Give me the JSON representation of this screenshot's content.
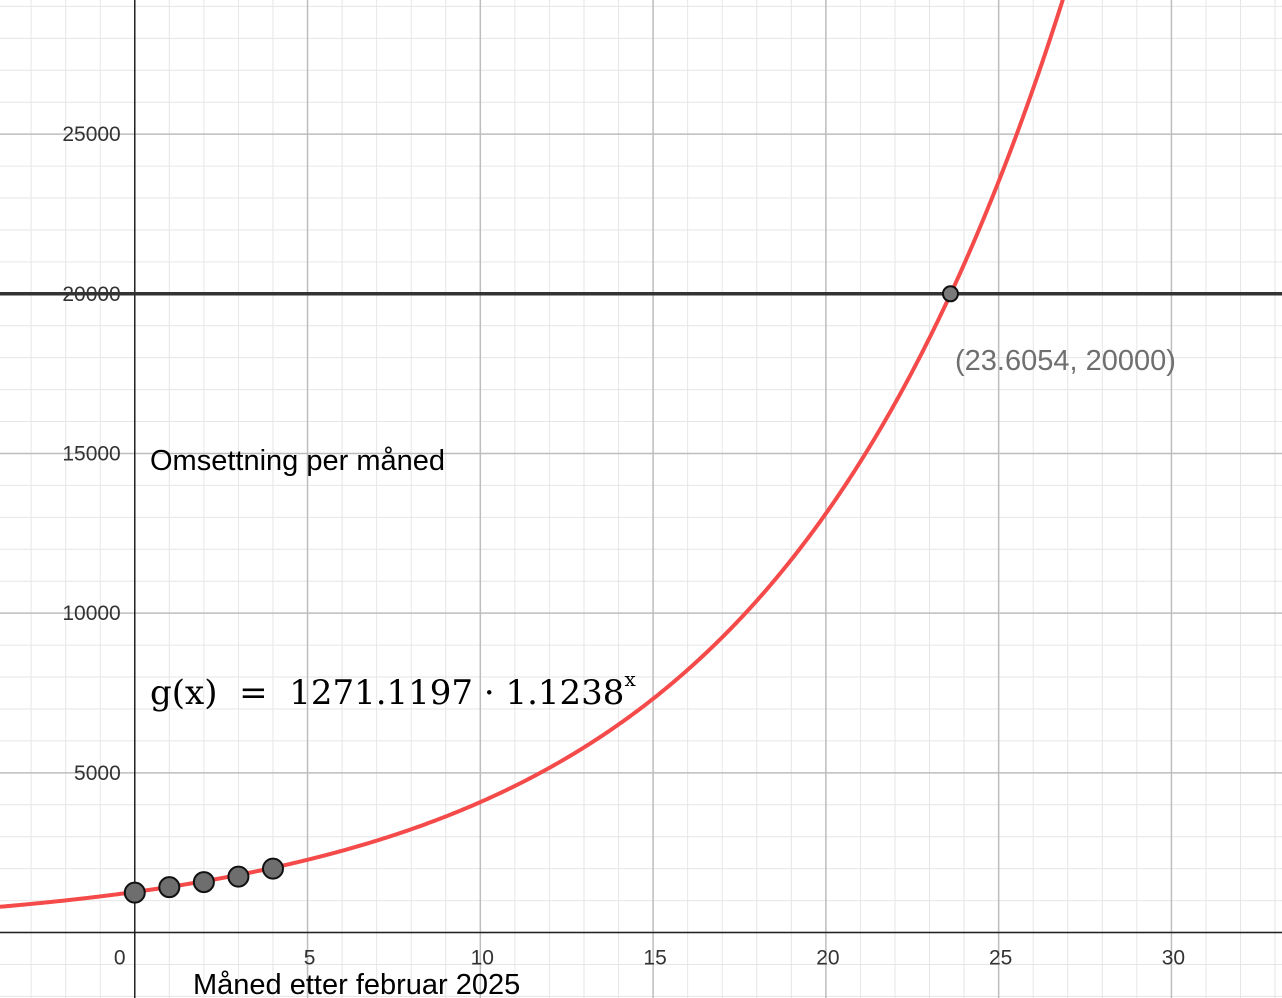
{
  "chart_data": {
    "type": "line",
    "xlim": [
      -3.9,
      33.2
    ],
    "ylim": [
      -2050,
      29200
    ],
    "grid": true,
    "x_ticks": [
      {
        "value": 0,
        "label": "0"
      },
      {
        "value": 5,
        "label": "5"
      },
      {
        "value": 10,
        "label": "10"
      },
      {
        "value": 15,
        "label": "15"
      },
      {
        "value": 20,
        "label": "20"
      },
      {
        "value": 25,
        "label": "25"
      },
      {
        "value": 30,
        "label": "30"
      }
    ],
    "y_ticks": [
      {
        "value": 5000,
        "label": "5000"
      },
      {
        "value": 10000,
        "label": "10000"
      },
      {
        "value": 15000,
        "label": "15000"
      },
      {
        "value": 20000,
        "label": "20000"
      },
      {
        "value": 25000,
        "label": "25000"
      }
    ],
    "xlabel": "Måned etter februar 2025",
    "ylabel": "Omsettning per måned",
    "function": {
      "name": "g(x)",
      "expression_base": "g(x)  =  1271.1197 · 1.1238",
      "expression_exponent": "x",
      "a": 1271.1197,
      "b": 1.1238,
      "color": "#f44a4a"
    },
    "data_points": [
      {
        "x": 0,
        "y": 1250
      },
      {
        "x": 1,
        "y": 1420
      },
      {
        "x": 2,
        "y": 1580
      },
      {
        "x": 3,
        "y": 1750
      },
      {
        "x": 4,
        "y": 2000
      }
    ],
    "horizontal_line": {
      "y": 20000,
      "color": "#333333"
    },
    "intersection": {
      "x": 23.6054,
      "y": 20000,
      "label": "(23.6054, 20000)"
    }
  }
}
